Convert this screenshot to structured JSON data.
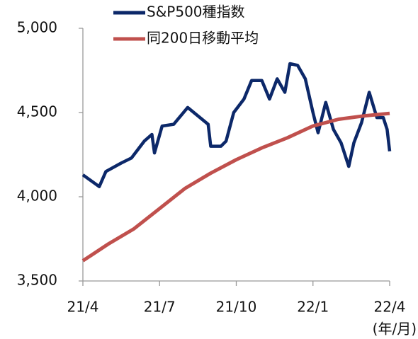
{
  "chart_data": {
    "type": "line",
    "series": [
      {
        "name": "S&P500種指数",
        "color": "#0c2869",
        "x": [
          0,
          0.64,
          0.9,
          1.5,
          1.9,
          2.4,
          2.7,
          2.8,
          3.1,
          3.55,
          4.1,
          4.5,
          4.9,
          5.0,
          5.4,
          5.6,
          5.9,
          6.3,
          6.6,
          7.0,
          7.3,
          7.6,
          7.9,
          8.1,
          8.4,
          8.7,
          9.0,
          9.2,
          9.5,
          9.8,
          10.1,
          10.4,
          10.6,
          10.9,
          11.2,
          11.5,
          11.75,
          11.9,
          12
        ],
        "values": [
          4130,
          4060,
          4150,
          4200,
          4230,
          4330,
          4370,
          4260,
          4420,
          4430,
          4530,
          4480,
          4430,
          4300,
          4300,
          4330,
          4500,
          4580,
          4690,
          4690,
          4580,
          4700,
          4620,
          4790,
          4780,
          4700,
          4500,
          4380,
          4560,
          4400,
          4320,
          4180,
          4320,
          4440,
          4620,
          4470,
          4470,
          4400,
          4270
        ]
      },
      {
        "name": "同200日移動平均",
        "color": "#c0504d",
        "x": [
          0,
          1,
          2,
          3,
          4,
          5,
          6,
          7,
          8,
          9,
          10,
          11,
          12
        ],
        "values": [
          3620,
          3720,
          3810,
          3930,
          4050,
          4140,
          4220,
          4290,
          4350,
          4420,
          4460,
          4480,
          4495
        ]
      }
    ],
    "xlim": [
      0,
      12
    ],
    "xticks": [
      {
        "value": 0,
        "label": "21/4"
      },
      {
        "value": 3,
        "label": "21/7"
      },
      {
        "value": 6,
        "label": "21/10"
      },
      {
        "value": 9,
        "label": "22/1"
      },
      {
        "value": 12,
        "label": "22/4"
      }
    ],
    "ylim": [
      3500,
      5000
    ],
    "yticks": [
      {
        "value": 3500,
        "label": "3,500"
      },
      {
        "value": 4000,
        "label": "4,000"
      },
      {
        "value": 4500,
        "label": "4,500"
      },
      {
        "value": 5000,
        "label": "5,000"
      }
    ],
    "x_unit_label": "(年/月)",
    "grid": false
  }
}
